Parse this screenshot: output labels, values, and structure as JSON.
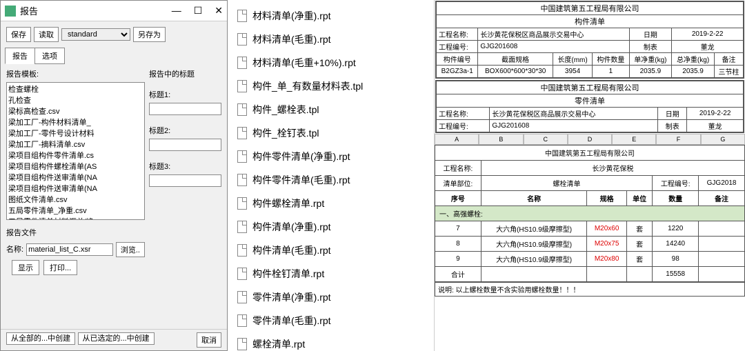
{
  "dialog": {
    "title": "报告",
    "toolbar": {
      "save": "保存",
      "load": "读取",
      "std": "standard",
      "saveas": "另存为"
    },
    "tabs": {
      "report": "报告",
      "options": "选项"
    },
    "template_label": "报告模板:",
    "templates": [
      "检查螺栓",
      "孔检查",
      "梁标高检查.csv",
      "梁加工厂-构件材料清单_",
      "梁加工厂-零件号设计材料",
      "梁加工厂-摘料清单.csv",
      "梁项目组构件零件清单.cs",
      "梁项目组构件螺栓清单(AS",
      "梁项目组构件送审清单(NA",
      "梁项目组构件送审清单(NA",
      "图纸文件清单.csv",
      "五局零件清单_净重.csv",
      "五局零件清单材料汇总(净"
    ],
    "titles_label": "报告中的标题",
    "title1": "标题1:",
    "title2": "标题2:",
    "title3": "标题3:",
    "file_label": "报告文件",
    "name_label": "名称:",
    "file_value": "material_list_C.xsr",
    "browse": "浏览..",
    "show": "显示",
    "print": "打印...",
    "create_all": "从全部的...中创建",
    "create_sel": "从已选定的...中创建",
    "cancel": "取消"
  },
  "files": [
    "材料清单(净重).rpt",
    "材料清单(毛重).rpt",
    "材料清单(毛重+10%).rpt",
    "构件_单_有数量材料表.tpl",
    "构件_螺栓表.tpl",
    "构件_栓钉表.tpl",
    "构件零件清单(净重).rpt",
    "构件零件清单(毛重).rpt",
    "构件螺栓清单.rpt",
    "构件清单(净重).rpt",
    "构件清单(毛重).rpt",
    "构件栓钉清单.rpt",
    "零件清单(净重).rpt",
    "零件清单(毛重).rpt",
    "螺栓清单.rpt"
  ],
  "company": "中国建筑第五工程局有限公司",
  "sheet1": {
    "title": "构件清单",
    "proj_name_lbl": "工程名称:",
    "proj_name": "长沙黄花保税区商品展示交易中心",
    "date_lbl": "日期",
    "date": "2019-2-22",
    "proj_no_lbl": "工程编号:",
    "proj_no": "GJG201608",
    "maker_lbl": "制表",
    "maker": "董龙",
    "h": {
      "c1": "构件编号",
      "c2": "截面规格",
      "c3": "长度(mm)",
      "c4": "构件数量",
      "c5": "单净重(kg)",
      "c6": "总净重(kg)",
      "c7": "备注"
    },
    "r1": {
      "c1": "B2GZ3a-1",
      "c2": "BOX600*600*30*30",
      "c3": "3954",
      "c4": "1",
      "c5": "2035.9",
      "c6": "2035.9",
      "c7": "三节柱"
    }
  },
  "sheet2": {
    "title": "零件清单",
    "proj_name_lbl": "工程名称:",
    "proj_name": "长沙黄花保税区商品展示交易中心",
    "date_lbl": "日期",
    "date": "2019-2-22",
    "proj_no_lbl": "工程编号:",
    "proj_no": "GJG201608",
    "maker_lbl": "制表",
    "maker": "董龙"
  },
  "xlscols": [
    "A",
    "B",
    "C",
    "D",
    "E",
    "F",
    "G"
  ],
  "sheet3": {
    "proj_lbl": "工程名称:",
    "proj": "长沙黄花保税",
    "part_lbl": "清单部位:",
    "part": "螺栓清单",
    "no_lbl": "工程编号:",
    "no": "GJG2018",
    "h": {
      "c1": "序号",
      "c2": "名称",
      "c3": "规格",
      "c4": "单位",
      "c5": "数量",
      "c6": "备注"
    },
    "section": "一、高强螺栓:",
    "rows": [
      {
        "c1": "7",
        "c2": "大六角(HS10.9级摩擦型)",
        "c3": "M20x60",
        "c4": "套",
        "c5": "1220"
      },
      {
        "c1": "8",
        "c2": "大六角(HS10.9级摩擦型)",
        "c3": "M20x75",
        "c4": "套",
        "c5": "14240"
      },
      {
        "c1": "9",
        "c2": "大六角(HS10.9级摩擦型)",
        "c3": "M20x80",
        "c4": "套",
        "c5": "98"
      }
    ],
    "total_lbl": "合计",
    "total": "15558",
    "note": "说明: 以上螺栓数量不含实验用螺栓数量！！！"
  }
}
